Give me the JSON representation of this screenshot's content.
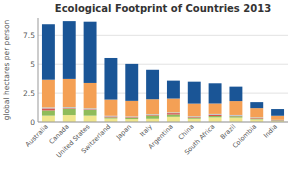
{
  "chart_data": {
    "type": "bar",
    "stacked": true,
    "title": "Ecological Footprint of Countries 2013",
    "ylabel": "global hectares per person",
    "categories": [
      "Australia",
      "Canada",
      "United States",
      "Switzerland",
      "Japan",
      "Italy",
      "Argentina",
      "China",
      "South Africa",
      "Brazil",
      "Colombia",
      "India"
    ],
    "series": [
      {
        "color": "#f0e68c",
        "values": [
          0.55,
          0.6,
          0.55,
          0.3,
          0.25,
          0.28,
          0.45,
          0.28,
          0.4,
          0.38,
          0.22,
          0.08
        ]
      },
      {
        "color": "#8fbc5a",
        "values": [
          0.45,
          0.55,
          0.5,
          0.1,
          0.12,
          0.28,
          0.2,
          0.1,
          0.12,
          0.12,
          0.08,
          0.05
        ]
      },
      {
        "color": "#d9534f",
        "values": [
          0.18,
          0.05,
          0.05,
          0.08,
          0.05,
          0.05,
          0.12,
          0.05,
          0.12,
          0.05,
          0.05,
          0.03
        ]
      },
      {
        "color": "#aaccdd",
        "values": [
          0.08,
          0.08,
          0.08,
          0.06,
          0.06,
          0.06,
          0.06,
          0.06,
          0.06,
          0.06,
          0.05,
          0.03
        ]
      },
      {
        "color": "#f4a055",
        "values": [
          2.4,
          2.45,
          2.2,
          1.4,
          1.35,
          1.3,
          1.2,
          1.1,
          0.9,
          1.2,
          0.8,
          0.35
        ]
      },
      {
        "color": "#1a5596",
        "values": [
          4.8,
          5.0,
          5.3,
          3.6,
          3.2,
          2.55,
          1.55,
          1.9,
          1.75,
          1.25,
          0.52,
          0.58
        ]
      }
    ],
    "ylim": [
      0,
      9
    ],
    "yticks": [
      0,
      2.5,
      5,
      7.5
    ],
    "grid": true
  }
}
